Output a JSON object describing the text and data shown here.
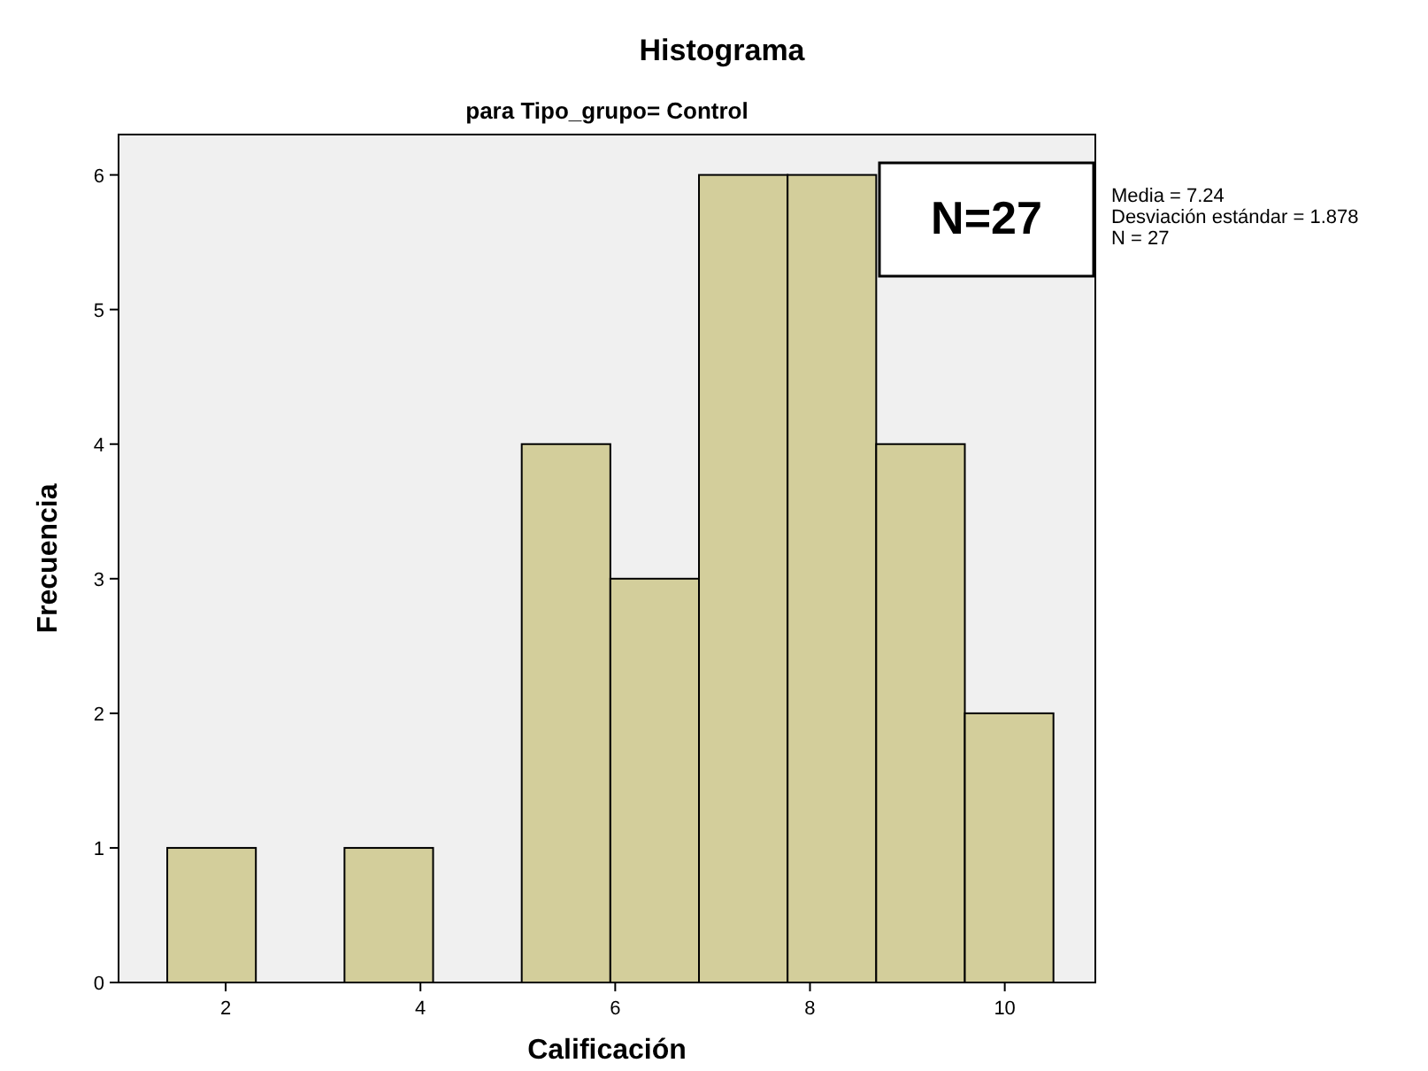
{
  "chart_data": {
    "type": "histogram",
    "title": "Histograma",
    "subtitle": "para Tipo_grupo= Control",
    "xlabel": "Calificación",
    "ylabel": "Frecuencia",
    "bins": [
      1.4,
      2.31,
      3.22,
      4.13,
      5.04,
      5.95,
      6.86,
      7.77,
      8.68,
      9.59,
      10.5
    ],
    "values": [
      1,
      0,
      1,
      0,
      4,
      3,
      6,
      6,
      4,
      2
    ],
    "color": "#d3ce9b",
    "xlim": [
      0.9,
      10.93
    ],
    "xticks": [
      2,
      4,
      6,
      8,
      10
    ],
    "ylim": [
      0,
      6.3
    ],
    "yticks": [
      0,
      1,
      2,
      3,
      4,
      5,
      6
    ],
    "grid": false,
    "annotations": [
      "N=27",
      "Media = 7.24",
      "Desviación estándar = 1.878",
      "N = 27"
    ]
  }
}
